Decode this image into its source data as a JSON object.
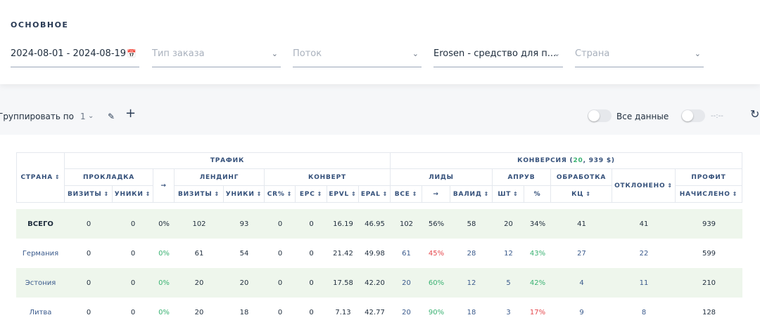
{
  "section_title": "ОСНОВНОЕ",
  "filters": [
    {
      "value": "2024-08-01 - 2024-08-19"
    },
    {
      "placeholder": "Тип заказа"
    },
    {
      "placeholder": "Поток"
    },
    {
      "value": "Erosen - средство для п..."
    },
    {
      "placeholder": "Страна"
    }
  ],
  "toolbar": {
    "group_label": "Группировать по",
    "group_value": "1",
    "all_data_label": "Все данные",
    "time_label": "--:--"
  },
  "table": {
    "header": {
      "country": "СТРАНА",
      "traffic": "ТРАФИК",
      "conversion": [
        "КОНВЕРСИЯ (",
        "20",
        ", 939 $)"
      ],
      "arrow": "→",
      "rejected": "ОТКЛОНЕНО",
      "subgroups": [
        "ПРОКЛАДКА",
        "ЛЕНДИНГ",
        "КОНВЕРТ",
        "ЛИДЫ",
        "АПРУВ",
        "ОБРАБОТКА",
        "ПРОФИТ"
      ],
      "columns": [
        "ВИЗИТЫ",
        "УНИКИ",
        "ВИЗИТЫ",
        "УНИКИ",
        "CR%",
        "EPC",
        "EPVL",
        "EPAL",
        "ВСЕ",
        "→",
        "ВАЛИД",
        "ШТ",
        "%",
        "КЦ",
        "НАЧИСЛЕНО"
      ]
    },
    "rows": [
      {
        "country": "ВСЕГО",
        "cells": [
          "0",
          "0",
          "0%",
          "102",
          "93",
          "0",
          "0",
          "16.19",
          "46.95",
          "102",
          "56%",
          "58",
          "20",
          "34%",
          "41",
          "41",
          "939"
        ]
      },
      {
        "country": "Германия",
        "cells": [
          "0",
          "0",
          {
            "text": "0%",
            "color": "#3bb273"
          },
          "61",
          "54",
          "0",
          "0",
          "21.42",
          "49.98",
          "61",
          {
            "text": "45%",
            "color": "#e5484d"
          },
          "28",
          "12",
          {
            "text": "43%",
            "color": "#3bb273"
          },
          "27",
          "22",
          "599"
        ]
      },
      {
        "country": "Эстония",
        "cells": [
          "0",
          "0",
          {
            "text": "0%",
            "color": "#3bb273"
          },
          "20",
          "20",
          "0",
          "0",
          "17.58",
          "42.20",
          "20",
          {
            "text": "60%",
            "color": "#3bb273"
          },
          "12",
          "5",
          {
            "text": "42%",
            "color": "#3bb273"
          },
          "4",
          "11",
          "210"
        ]
      },
      {
        "country": "Литва",
        "cells": [
          "0",
          "0",
          {
            "text": "0%",
            "color": "#3bb273"
          },
          "20",
          "18",
          "0",
          "0",
          "7.13",
          "42.77",
          "20",
          {
            "text": "90%",
            "color": "#3bb273"
          },
          "18",
          "3",
          {
            "text": "17%",
            "color": "#e5484d"
          },
          "9",
          "8",
          "128"
        ]
      }
    ]
  }
}
